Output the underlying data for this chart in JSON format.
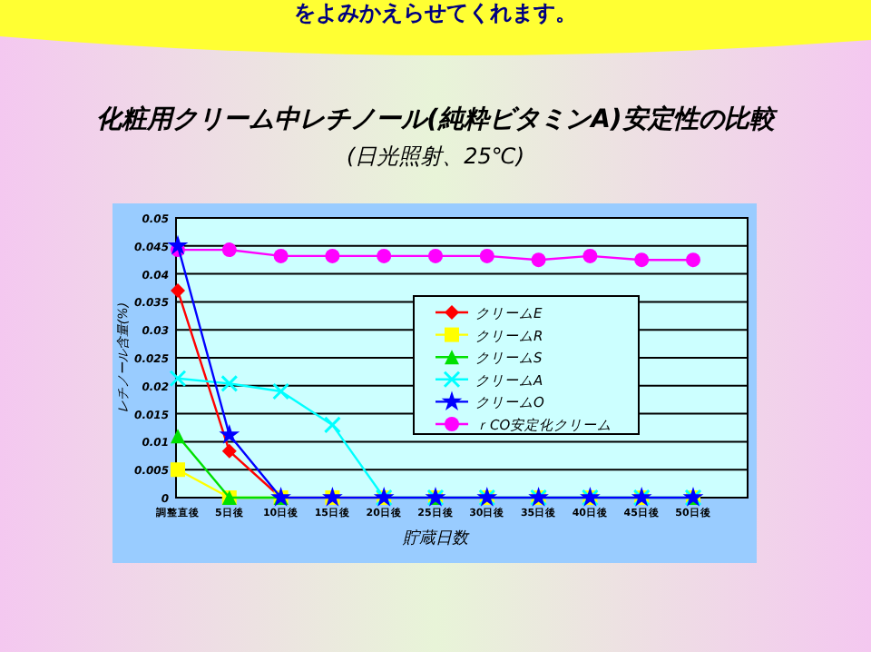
{
  "chart_data": {
    "type": "line",
    "title": "化粧用クリーム中レチノール(純粋ビタミンA)安定性の比較",
    "subtitle": "(日光照射、25℃)",
    "xlabel": "貯蔵日数",
    "ylabel": "レチノール含量(%)",
    "annotations": [
      "をよみかえらせてくれます。"
    ],
    "categories": [
      "調整直後",
      "5日後",
      "10日後",
      "15日後",
      "20日後",
      "25日後",
      "30日後",
      "35日後",
      "40日後",
      "45日後",
      "50日後"
    ],
    "ylim": [
      0,
      0.05
    ],
    "yticks": [
      0,
      0.005,
      0.01,
      0.015,
      0.02,
      0.025,
      0.03,
      0.035,
      0.04,
      0.045,
      0.05
    ],
    "grid": "y",
    "legend": "right",
    "series": [
      {
        "name": "クリームE",
        "color": "#ff0000",
        "marker": "diamond",
        "values": [
          0.037,
          0.0083,
          0,
          null,
          null,
          null,
          null,
          null,
          null,
          null,
          null
        ]
      },
      {
        "name": "クリームR",
        "color": "#ffff00",
        "marker": "square",
        "values": [
          0.005,
          0,
          0,
          0,
          0,
          0,
          0,
          0,
          0,
          0,
          0
        ]
      },
      {
        "name": "クリームS",
        "color": "#00e000",
        "marker": "triangle",
        "values": [
          0.011,
          0,
          0,
          null,
          null,
          0,
          null,
          null,
          null,
          null,
          0
        ]
      },
      {
        "name": "クリームA",
        "color": "#00ffff",
        "marker": "cross",
        "values": [
          0.0213,
          0.0204,
          0.019,
          0.013,
          0,
          0,
          0,
          0,
          0,
          0,
          0
        ]
      },
      {
        "name": "クリームO",
        "color": "#0000ff",
        "marker": "star",
        "values": [
          0.045,
          0.0112,
          0,
          0,
          0,
          0,
          0,
          0,
          0,
          0,
          0
        ]
      },
      {
        "name": "ｒCO安定化クリーム",
        "color": "#ff00ff",
        "marker": "circle",
        "values": [
          0.0443,
          0.0443,
          0.0432,
          0.0432,
          0.0432,
          0.0432,
          0.0432,
          0.0425,
          0.0432,
          0.0425,
          0.0425
        ]
      }
    ]
  }
}
